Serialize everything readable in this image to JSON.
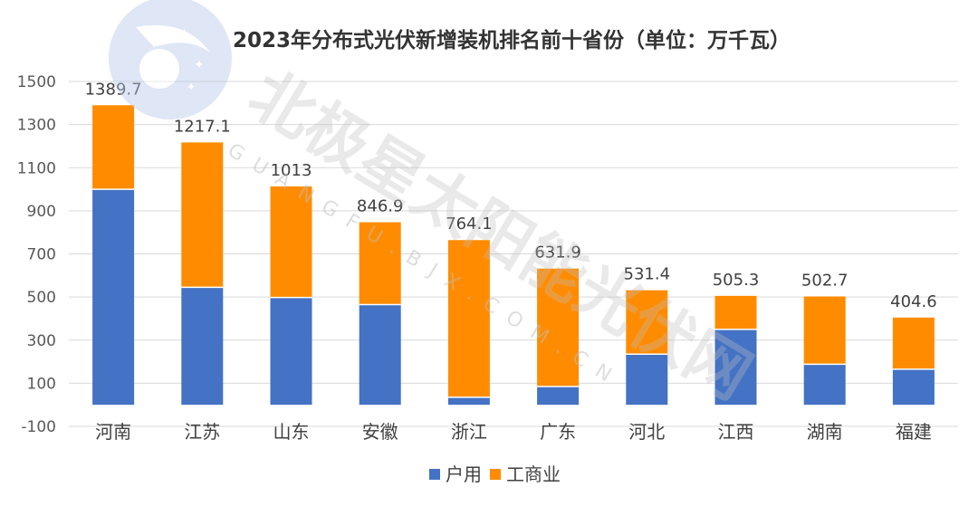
{
  "watermark": {
    "text_cn": "北极星太阳能光伏网",
    "text_en": "GUANGFU.BJX.COM.CN"
  },
  "chart_data": {
    "type": "bar",
    "stacked": true,
    "title": "2023年分布式光伏新增装机排名前十省份（单位：万千瓦）",
    "categories": [
      "河南",
      "江苏",
      "山东",
      "安徽",
      "浙江",
      "广东",
      "河北",
      "江西",
      "湖南",
      "福建"
    ],
    "series": [
      {
        "name": "户用",
        "color": "#4472c4",
        "values": [
          1000,
          545,
          498,
          465,
          35,
          85,
          235,
          350,
          188,
          165
        ]
      },
      {
        "name": "工商业",
        "color": "#ff8c00",
        "values": [
          389.7,
          672.1,
          515,
          381.9,
          729.1,
          546.9,
          296.4,
          155.3,
          314.7,
          239.6
        ]
      }
    ],
    "totals": [
      "1389.7",
      "1217.1",
      "1013",
      "846.9",
      "764.1",
      "631.9",
      "531.4",
      "505.3",
      "502.7",
      "404.6"
    ],
    "yticks": [
      1500,
      1300,
      1100,
      900,
      700,
      500,
      300,
      100,
      -100
    ],
    "ylim": [
      -100,
      1500
    ],
    "grid": true,
    "legend": "bottom-center"
  }
}
